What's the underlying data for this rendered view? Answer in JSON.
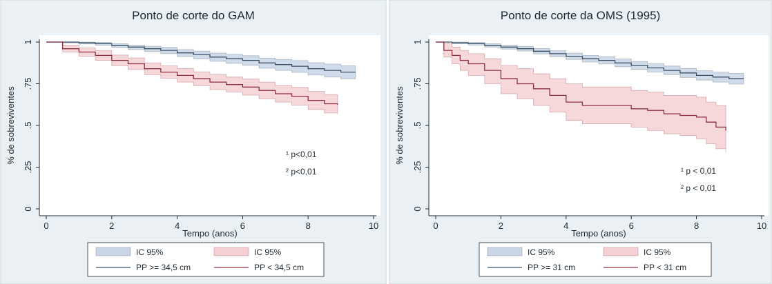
{
  "chart_data": [
    {
      "type": "line",
      "title": "Ponto de corte do GAM",
      "xlabel": "Tempo (anos)",
      "ylabel": "% de sobreviventes",
      "xlim": [
        0,
        10
      ],
      "ylim": [
        0,
        1
      ],
      "x_ticks": [
        "0",
        "2",
        "4",
        "6",
        "8",
        "10"
      ],
      "y_ticks": [
        "0",
        ".25",
        ".5",
        ".75",
        "1"
      ],
      "grid": false,
      "legend_position": "bottom",
      "annotations": [
        "¹ p<0,01",
        "² p<0,01"
      ],
      "series": [
        {
          "name": "PP >= 34,5 cm",
          "band_name": "IC 95%",
          "color": "#3a4f63",
          "band_color": "#c9d6e6",
          "x": [
            0,
            0.5,
            1,
            1.5,
            2,
            2.5,
            3,
            3.5,
            4,
            4.5,
            5,
            5.5,
            6,
            6.5,
            7,
            7.5,
            8,
            8.5,
            9,
            9.45
          ],
          "y": [
            1.0,
            1.0,
            0.995,
            0.99,
            0.98,
            0.97,
            0.96,
            0.95,
            0.935,
            0.925,
            0.91,
            0.9,
            0.89,
            0.875,
            0.865,
            0.855,
            0.84,
            0.83,
            0.82,
            0.82
          ],
          "lower": [
            1.0,
            0.995,
            0.988,
            0.98,
            0.968,
            0.955,
            0.943,
            0.93,
            0.913,
            0.9,
            0.885,
            0.872,
            0.86,
            0.844,
            0.83,
            0.818,
            0.802,
            0.79,
            0.78,
            0.78
          ],
          "upper": [
            1.0,
            1.0,
            1.0,
            0.998,
            0.99,
            0.982,
            0.975,
            0.968,
            0.955,
            0.946,
            0.934,
            0.926,
            0.918,
            0.904,
            0.896,
            0.889,
            0.876,
            0.868,
            0.858,
            0.858
          ]
        },
        {
          "name": "PP < 34,5 cm",
          "band_name": "IC 95%",
          "color": "#8c2e3c",
          "band_color": "#f4d0d4",
          "x": [
            0,
            0.5,
            1,
            1.5,
            2,
            2.5,
            3,
            3.5,
            4,
            4.5,
            5,
            5.5,
            6,
            6.5,
            7,
            7.5,
            8,
            8.5,
            8.9
          ],
          "y": [
            1.0,
            0.96,
            0.94,
            0.92,
            0.89,
            0.87,
            0.84,
            0.82,
            0.8,
            0.78,
            0.76,
            0.745,
            0.73,
            0.71,
            0.69,
            0.675,
            0.65,
            0.63,
            0.625
          ],
          "lower": [
            1.0,
            0.94,
            0.915,
            0.89,
            0.858,
            0.835,
            0.805,
            0.783,
            0.76,
            0.738,
            0.715,
            0.7,
            0.682,
            0.66,
            0.64,
            0.622,
            0.596,
            0.575,
            0.57
          ],
          "upper": [
            1.0,
            0.98,
            0.965,
            0.95,
            0.922,
            0.905,
            0.875,
            0.857,
            0.84,
            0.822,
            0.805,
            0.79,
            0.778,
            0.76,
            0.74,
            0.728,
            0.704,
            0.685,
            0.68
          ]
        }
      ]
    },
    {
      "type": "line",
      "title": "Ponto de corte da OMS (1995)",
      "xlabel": "Tempo (anos)",
      "ylabel": "% de sobreviventes",
      "xlim": [
        0,
        10
      ],
      "ylim": [
        0,
        1
      ],
      "x_ticks": [
        "0",
        "2",
        "4",
        "6",
        "8",
        "10"
      ],
      "y_ticks": [
        "0",
        ".25",
        ".5",
        ".75",
        "1"
      ],
      "grid": false,
      "legend_position": "bottom",
      "annotations": [
        "¹ p < 0,01",
        "² p < 0,01"
      ],
      "series": [
        {
          "name": "PP >= 31 cm",
          "band_name": "IC 95%",
          "color": "#3a4f63",
          "band_color": "#c9d6e6",
          "x": [
            0,
            0.5,
            1,
            1.5,
            2,
            2.5,
            3,
            3.5,
            4,
            4.5,
            5,
            5.5,
            6,
            6.5,
            7,
            7.5,
            8,
            8.5,
            9,
            9.45
          ],
          "y": [
            1.0,
            0.995,
            0.99,
            0.98,
            0.97,
            0.96,
            0.945,
            0.93,
            0.915,
            0.9,
            0.89,
            0.875,
            0.86,
            0.845,
            0.83,
            0.815,
            0.8,
            0.79,
            0.78,
            0.78
          ],
          "lower": [
            1.0,
            0.99,
            0.982,
            0.97,
            0.958,
            0.946,
            0.929,
            0.912,
            0.896,
            0.88,
            0.868,
            0.852,
            0.836,
            0.82,
            0.804,
            0.788,
            0.772,
            0.76,
            0.748,
            0.748
          ],
          "upper": [
            1.0,
            1.0,
            0.997,
            0.99,
            0.982,
            0.974,
            0.961,
            0.948,
            0.934,
            0.92,
            0.912,
            0.898,
            0.884,
            0.87,
            0.856,
            0.842,
            0.828,
            0.82,
            0.812,
            0.812
          ]
        },
        {
          "name": "PP < 31 cm",
          "band_name": "IC 95%",
          "color": "#8c2e3c",
          "band_color": "#f4d0d4",
          "x": [
            0,
            0.25,
            0.5,
            0.75,
            1,
            1.5,
            2,
            2.5,
            3,
            3.5,
            4,
            4.5,
            5,
            5.5,
            6,
            6.5,
            7,
            7.5,
            8,
            8.3,
            8.6,
            8.9
          ],
          "y": [
            1.0,
            0.95,
            0.92,
            0.89,
            0.87,
            0.83,
            0.78,
            0.75,
            0.72,
            0.68,
            0.64,
            0.62,
            0.62,
            0.62,
            0.6,
            0.59,
            0.57,
            0.56,
            0.55,
            0.52,
            0.49,
            0.47
          ],
          "lower": [
            1.0,
            0.91,
            0.87,
            0.83,
            0.8,
            0.75,
            0.69,
            0.66,
            0.62,
            0.58,
            0.53,
            0.51,
            0.51,
            0.51,
            0.49,
            0.47,
            0.45,
            0.44,
            0.42,
            0.39,
            0.36,
            0.34
          ],
          "upper": [
            1.0,
            0.99,
            0.97,
            0.95,
            0.93,
            0.9,
            0.86,
            0.84,
            0.81,
            0.78,
            0.75,
            0.73,
            0.73,
            0.73,
            0.71,
            0.7,
            0.68,
            0.68,
            0.67,
            0.64,
            0.62,
            0.59
          ]
        }
      ]
    }
  ]
}
